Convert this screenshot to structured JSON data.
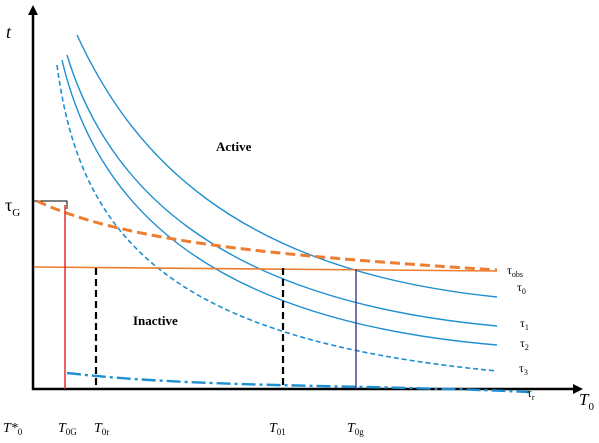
{
  "axes": {
    "y_label": "t",
    "x_label": "T",
    "x_label_sub": "0"
  },
  "regions": {
    "active": "Active",
    "inactive": "Inactive"
  },
  "y_marker": {
    "label": "τ",
    "label_sub": "G"
  },
  "x_ticks": [
    {
      "main": "T*",
      "sub": "0"
    },
    {
      "main": "T",
      "sub": "0G"
    },
    {
      "main": "T",
      "sub": "0r"
    },
    {
      "main": "T",
      "sub": "01"
    },
    {
      "main": "T",
      "sub": "0g"
    }
  ],
  "curve_labels": [
    {
      "main": "τ",
      "sub": "obs"
    },
    {
      "main": "τ",
      "sub": "0"
    },
    {
      "main": "τ",
      "sub": "1"
    },
    {
      "main": "τ",
      "sub": "2"
    },
    {
      "main": "τ",
      "sub": "3"
    },
    {
      "main": "τ",
      "sub": "r"
    }
  ],
  "colors": {
    "axis": "#000000",
    "blue": "#1f8fd0",
    "orange": "#ed7d31",
    "red": "#e02020",
    "navy": "#3a3a8c",
    "dashed_black": "#000000"
  }
}
